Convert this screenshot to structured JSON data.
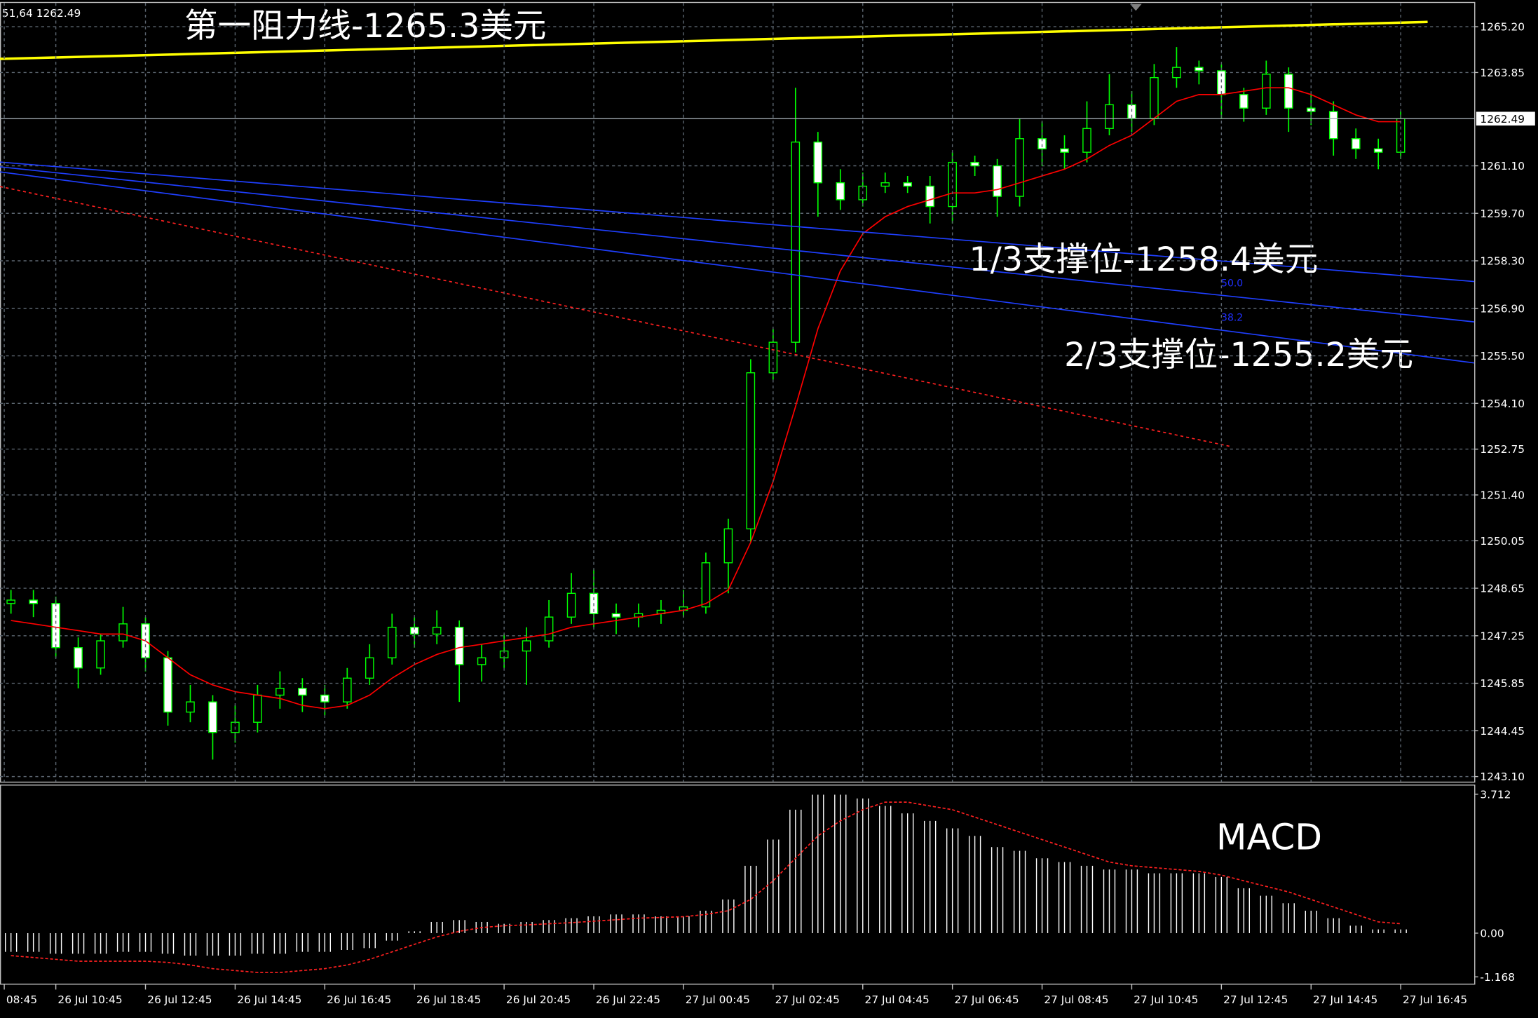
{
  "chart_data": [
    {
      "type": "candlestick",
      "header": "51,64 1262.49",
      "annotations": [
        "第一阻力线-1265.3美元",
        "1/3支撑位-1258.4美元",
        "2/3支撑位-1255.2美元"
      ],
      "fib_labels": [
        "50.0",
        "38.2"
      ],
      "up_color": "#00ff00",
      "down_color": "#ffffff",
      "ma_color": "#ff0000",
      "grid": true,
      "xlim": [
        -0.49,
        65.28
      ],
      "ylim": [
        1242.95,
        1265.9
      ],
      "yticks": [
        {
          "value": 1265.2,
          "label": "1265.20"
        },
        {
          "value": 1263.85,
          "label": "1263.85"
        },
        {
          "value": 1261.1,
          "label": "1261.10"
        },
        {
          "value": 1259.7,
          "label": "1259.70"
        },
        {
          "value": 1258.3,
          "label": "1258.30"
        },
        {
          "value": 1256.9,
          "label": "1256.90"
        },
        {
          "value": 1255.5,
          "label": "1255.50"
        },
        {
          "value": 1254.1,
          "label": "1254.10"
        },
        1252.75,
        {
          "value": 1251.4,
          "label": "1251.40"
        },
        1250.05,
        1248.65,
        1247.25,
        1245.85,
        1244.45,
        {
          "value": 1243.1,
          "label": "1243.10"
        }
      ],
      "price_line": 1262.49,
      "open": [
        1248.2,
        1248.3,
        1248.2,
        1246.9,
        1246.3,
        1247.1,
        1247.6,
        1246.6,
        1245.0,
        1245.3,
        1244.4,
        1244.7,
        1245.5,
        1245.7,
        1245.5,
        1245.3,
        1246.0,
        1246.6,
        1247.5,
        1247.3,
        1247.5,
        1246.4,
        1246.6,
        1246.8,
        1247.1,
        1247.8,
        1248.5,
        1247.9,
        1247.8,
        1247.9,
        1248.0,
        1248.1,
        1249.4,
        1250.4,
        1255.0,
        1255.9,
        1261.8,
        1260.6,
        1260.1,
        1260.5,
        1260.6,
        1260.5,
        1259.9,
        1261.2,
        1261.1,
        1260.2,
        1261.9,
        1261.6,
        1261.5,
        1262.2,
        1262.9,
        1262.5,
        1263.7,
        1264.0,
        1263.9,
        1263.2,
        1262.8,
        1263.8,
        1262.8,
        1262.7,
        1261.9,
        1261.6,
        1261.5
      ],
      "high": [
        1248.6,
        1248.6,
        1248.4,
        1247.2,
        1247.3,
        1248.1,
        1247.8,
        1246.8,
        1245.8,
        1245.5,
        1245.2,
        1245.8,
        1246.2,
        1246.0,
        1245.8,
        1246.3,
        1247.0,
        1247.9,
        1247.8,
        1248.0,
        1247.7,
        1247.0,
        1247.3,
        1247.5,
        1248.3,
        1249.1,
        1249.2,
        1248.2,
        1248.2,
        1248.3,
        1248.6,
        1249.7,
        1250.7,
        1255.4,
        1256.3,
        1263.4,
        1262.1,
        1261.0,
        1260.9,
        1260.9,
        1260.8,
        1260.8,
        1261.5,
        1261.4,
        1261.3,
        1262.5,
        1262.4,
        1262.0,
        1263.0,
        1263.8,
        1263.3,
        1264.1,
        1264.6,
        1264.2,
        1264.1,
        1263.4,
        1264.2,
        1264.0,
        1263.2,
        1263.0,
        1262.2,
        1261.9,
        1262.7
      ],
      "low": [
        1247.9,
        1247.8,
        1246.6,
        1245.7,
        1246.1,
        1246.9,
        1246.2,
        1244.6,
        1244.7,
        1243.6,
        1244.1,
        1244.4,
        1245.1,
        1245.0,
        1244.9,
        1245.1,
        1245.8,
        1246.4,
        1246.9,
        1247.0,
        1245.3,
        1245.9,
        1246.3,
        1245.8,
        1246.9,
        1247.6,
        1247.5,
        1247.3,
        1247.5,
        1247.6,
        1247.8,
        1247.9,
        1248.5,
        1250.0,
        1254.8,
        1255.6,
        1259.6,
        1259.8,
        1259.9,
        1260.3,
        1260.3,
        1259.4,
        1259.4,
        1260.8,
        1259.6,
        1259.9,
        1261.1,
        1261.0,
        1261.2,
        1262.0,
        1262.1,
        1262.3,
        1263.4,
        1263.5,
        1262.5,
        1262.4,
        1262.6,
        1262.1,
        1262.3,
        1261.4,
        1261.3,
        1261.0,
        1261.3
      ],
      "close": [
        1248.3,
        1248.2,
        1246.9,
        1246.3,
        1247.1,
        1247.6,
        1246.6,
        1245.0,
        1245.3,
        1244.4,
        1244.7,
        1245.5,
        1245.7,
        1245.5,
        1245.3,
        1246.0,
        1246.6,
        1247.5,
        1247.3,
        1247.5,
        1246.4,
        1246.6,
        1246.8,
        1247.1,
        1247.8,
        1248.5,
        1247.9,
        1247.8,
        1247.9,
        1248.0,
        1248.1,
        1249.4,
        1250.4,
        1255.0,
        1255.9,
        1261.8,
        1260.6,
        1260.1,
        1260.5,
        1260.6,
        1260.5,
        1259.9,
        1261.2,
        1261.1,
        1260.2,
        1261.9,
        1261.6,
        1261.5,
        1262.2,
        1262.9,
        1262.5,
        1263.7,
        1264.0,
        1263.9,
        1263.2,
        1262.8,
        1263.8,
        1262.8,
        1262.7,
        1261.9,
        1261.6,
        1261.5,
        1262.49
      ],
      "ma": [
        1247.7,
        1247.6,
        1247.5,
        1247.4,
        1247.3,
        1247.3,
        1247.1,
        1246.6,
        1246.1,
        1245.8,
        1245.6,
        1245.5,
        1245.4,
        1245.2,
        1245.1,
        1245.2,
        1245.5,
        1246.0,
        1246.4,
        1246.7,
        1246.9,
        1247.0,
        1247.1,
        1247.2,
        1247.3,
        1247.5,
        1247.6,
        1247.7,
        1247.8,
        1247.9,
        1248.0,
        1248.2,
        1248.6,
        1250.0,
        1251.8,
        1254.0,
        1256.3,
        1258.0,
        1259.1,
        1259.6,
        1259.9,
        1260.1,
        1260.3,
        1260.3,
        1260.4,
        1260.6,
        1260.8,
        1261.0,
        1261.3,
        1261.7,
        1262.0,
        1262.5,
        1263.0,
        1263.2,
        1263.2,
        1263.3,
        1263.4,
        1263.4,
        1263.2,
        1262.9,
        1262.6,
        1262.4,
        1262.4
      ],
      "trendlines": [
        {
          "color": "#ffff00",
          "dash": false,
          "x": [
            -0.49,
            63.2
          ],
          "y": [
            1264.25,
            1265.34
          ]
        },
        {
          "color": "#1f3fff",
          "dash": false,
          "x": [
            -0.49,
            65.28
          ],
          "y": [
            1261.21,
            1257.69
          ]
        },
        {
          "color": "#1f3fff",
          "dash": false,
          "x": [
            -0.49,
            65.28
          ],
          "y": [
            1261.07,
            1256.5
          ]
        },
        {
          "color": "#1f3fff",
          "dash": false,
          "x": [
            -0.49,
            65.28
          ],
          "y": [
            1260.92,
            1255.29
          ]
        },
        {
          "color": "#ff2020",
          "dash": true,
          "x": [
            -0.49,
            54.4
          ],
          "y": [
            1260.49,
            1252.83
          ]
        }
      ]
    },
    {
      "type": "macd",
      "title": "MACD",
      "hist_color": "#ffffff",
      "signal_color": "#ff2020",
      "xlim": [
        -0.49,
        65.28
      ],
      "ylim": [
        -1.35,
        3.97
      ],
      "yticks": [
        3.712,
        {
          "value": 0,
          "label": "0.00"
        },
        -1.168
      ],
      "xticks": [
        {
          "value": -0.3,
          "label": "08:45"
        },
        {
          "value": 2,
          "label": "26 Jul 10:45"
        },
        {
          "value": 6,
          "label": "26 Jul 12:45"
        },
        {
          "value": 10,
          "label": "26 Jul 14:45"
        },
        {
          "value": 14,
          "label": "26 Jul 16:45"
        },
        {
          "value": 18,
          "label": "26 Jul 18:45"
        },
        {
          "value": 22,
          "label": "26 Jul 20:45"
        },
        {
          "value": 26,
          "label": "26 Jul 22:45"
        },
        {
          "value": 30,
          "label": "27 Jul 00:45"
        },
        {
          "value": 34,
          "label": "27 Jul 02:45"
        },
        {
          "value": 38,
          "label": "27 Jul 04:45"
        },
        {
          "value": 42,
          "label": "27 Jul 06:45"
        },
        {
          "value": 46,
          "label": "27 Jul 08:45"
        },
        {
          "value": 50,
          "label": "27 Jul 10:45"
        },
        {
          "value": 54,
          "label": "27 Jul 12:45"
        },
        {
          "value": 58,
          "label": "27 Jul 14:45"
        },
        {
          "value": 62,
          "label": "27 Jul 16:45"
        }
      ],
      "histogram": [
        -0.5,
        -0.5,
        -0.55,
        -0.55,
        -0.55,
        -0.5,
        -0.5,
        -0.55,
        -0.6,
        -0.6,
        -0.6,
        -0.55,
        -0.55,
        -0.5,
        -0.5,
        -0.45,
        -0.4,
        -0.2,
        0.05,
        0.3,
        0.35,
        0.3,
        0.25,
        0.3,
        0.35,
        0.4,
        0.45,
        0.5,
        0.5,
        0.45,
        0.45,
        0.6,
        0.9,
        1.8,
        2.5,
        3.3,
        3.7,
        3.7,
        3.6,
        3.4,
        3.2,
        3.0,
        2.8,
        2.6,
        2.3,
        2.2,
        2.0,
        1.9,
        1.8,
        1.7,
        1.7,
        1.6,
        1.6,
        1.6,
        1.5,
        1.2,
        1.0,
        0.8,
        0.6,
        0.4,
        0.2,
        0.1,
        0.1
      ],
      "signal": [
        -0.6,
        -0.65,
        -0.7,
        -0.75,
        -0.75,
        -0.75,
        -0.75,
        -0.78,
        -0.85,
        -0.95,
        -1.0,
        -1.05,
        -1.05,
        -1.0,
        -0.95,
        -0.85,
        -0.7,
        -0.5,
        -0.3,
        -0.1,
        0.05,
        0.15,
        0.2,
        0.22,
        0.25,
        0.28,
        0.32,
        0.36,
        0.4,
        0.42,
        0.44,
        0.5,
        0.6,
        0.9,
        1.4,
        2.0,
        2.6,
        3.0,
        3.3,
        3.5,
        3.5,
        3.4,
        3.3,
        3.1,
        2.9,
        2.7,
        2.5,
        2.3,
        2.1,
        1.9,
        1.8,
        1.75,
        1.7,
        1.65,
        1.55,
        1.4,
        1.25,
        1.1,
        0.9,
        0.7,
        0.5,
        0.3,
        0.25
      ]
    }
  ]
}
